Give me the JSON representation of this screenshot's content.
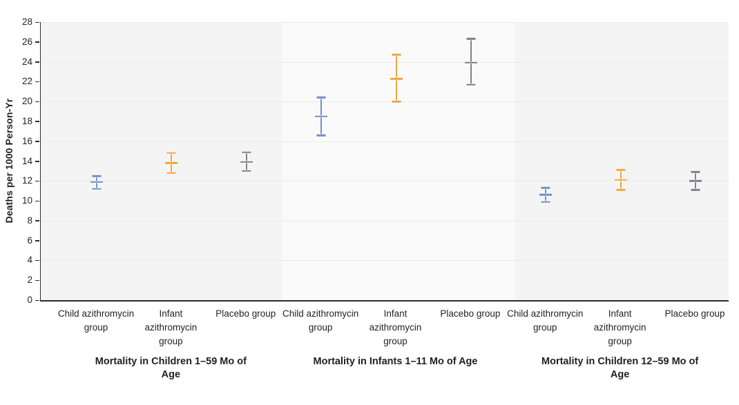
{
  "chart_data": {
    "type": "errorbar",
    "ylabel": "Deaths per 1000 Person-Yr",
    "ylim": [
      0,
      28
    ],
    "yticks": [
      0,
      2,
      4,
      6,
      8,
      10,
      12,
      14,
      16,
      18,
      20,
      22,
      24,
      26,
      28
    ],
    "gridlines": [
      4,
      8,
      12,
      16,
      20,
      24,
      28
    ],
    "grid": "horizontal, every 4 units, faint",
    "legend_position": "none",
    "palette": [
      "#6f8ec7",
      "#efa33e",
      "#7d7f82"
    ],
    "series_names": [
      "Child azithromycin group",
      "Infant azithromycin group",
      "Placebo group"
    ],
    "panels": [
      {
        "title": "Mortality in Children 1–59 Mo of Age",
        "groups": [
          {
            "label": "Child azithromycin group",
            "value": 11.9,
            "ci_low": 11.2,
            "ci_high": 12.5
          },
          {
            "label": "Infant azithromycin group",
            "value": 13.8,
            "ci_low": 12.8,
            "ci_high": 14.8
          },
          {
            "label": "Placebo group",
            "value": 13.9,
            "ci_low": 13.0,
            "ci_high": 14.9
          }
        ]
      },
      {
        "title": "Mortality in Infants 1–11 Mo of Age",
        "groups": [
          {
            "label": "Child azithromycin group",
            "value": 18.5,
            "ci_low": 16.6,
            "ci_high": 20.4
          },
          {
            "label": "Infant azithromycin group",
            "value": 22.3,
            "ci_low": 20.0,
            "ci_high": 24.7
          },
          {
            "label": "Placebo group",
            "value": 23.9,
            "ci_low": 21.7,
            "ci_high": 26.3
          }
        ]
      },
      {
        "title": "Mortality in Children 12–59 Mo of Age",
        "groups": [
          {
            "label": "Child azithromycin group",
            "value": 10.6,
            "ci_low": 9.9,
            "ci_high": 11.3
          },
          {
            "label": "Infant azithromycin group",
            "value": 12.1,
            "ci_low": 11.1,
            "ci_high": 13.1
          },
          {
            "label": "Placebo group",
            "value": 12.0,
            "ci_low": 11.1,
            "ci_high": 12.9
          }
        ]
      }
    ]
  }
}
